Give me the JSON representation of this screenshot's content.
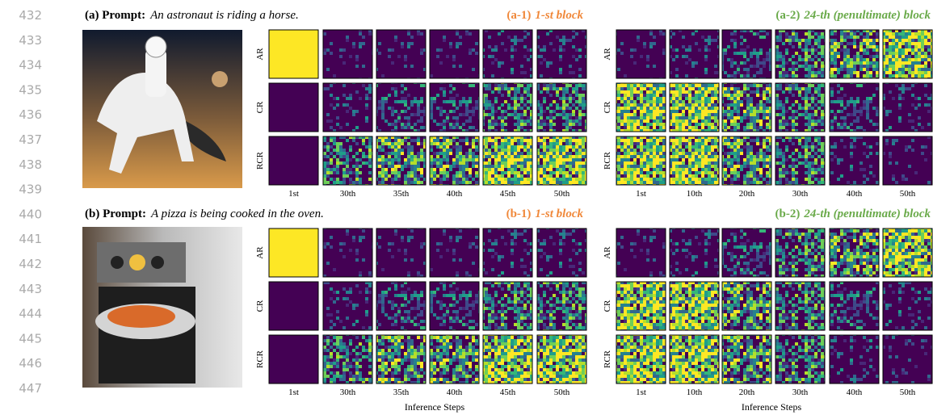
{
  "line_numbers": [
    "432",
    "433",
    "434",
    "435",
    "436",
    "437",
    "438",
    "439",
    "440",
    "441",
    "442",
    "443",
    "444",
    "445",
    "446",
    "447"
  ],
  "panels": [
    {
      "label": "(a) Prompt:",
      "prompt": "An astronaut is riding a horse.",
      "blocks": [
        {
          "id": "(a-1)",
          "title": "1-st block",
          "rows": [
            "AR",
            "CR",
            "RCR"
          ],
          "columns": [
            "1st",
            "30th",
            "35th",
            "40th",
            "45th",
            "50th"
          ]
        },
        {
          "id": "(a-2)",
          "title": "24-th (penultimate) block",
          "rows": [
            "AR",
            "CR",
            "RCR"
          ],
          "columns": [
            "1st",
            "10th",
            "20th",
            "30th",
            "40th",
            "50th"
          ]
        }
      ]
    },
    {
      "label": "(b) Prompt:",
      "prompt": "A pizza is being cooked in the oven.",
      "blocks": [
        {
          "id": "(b-1)",
          "title": "1-st block",
          "rows": [
            "AR",
            "CR",
            "RCR"
          ],
          "columns": [
            "1st",
            "30th",
            "35th",
            "40th",
            "45th",
            "50th"
          ]
        },
        {
          "id": "(b-2)",
          "title": "24-th (penultimate) block",
          "rows": [
            "AR",
            "CR",
            "RCR"
          ],
          "columns": [
            "1st",
            "10th",
            "20th",
            "30th",
            "40th",
            "50th"
          ]
        }
      ]
    }
  ],
  "axis_labels": [
    "Inference Steps",
    "Inference Steps"
  ]
}
